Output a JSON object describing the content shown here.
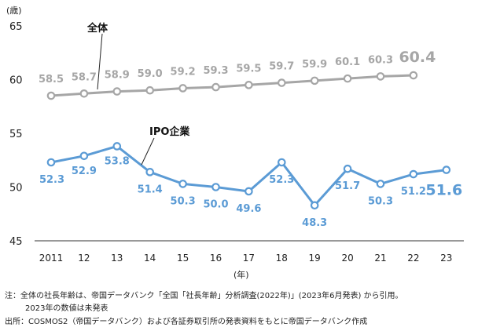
{
  "chart_data": {
    "type": "line",
    "y_unit": "(歳)",
    "x_unit": "(年)",
    "categories": [
      "2011",
      "12",
      "13",
      "14",
      "15",
      "16",
      "17",
      "18",
      "19",
      "20",
      "21",
      "22",
      "23"
    ],
    "ylim": [
      45,
      65
    ],
    "yticks": [
      45,
      50,
      55,
      60,
      65
    ],
    "grid": false,
    "series": [
      {
        "name": "全体",
        "color": "#a6a6a6",
        "values": [
          58.5,
          58.7,
          58.9,
          59.0,
          59.2,
          59.3,
          59.5,
          59.7,
          59.9,
          60.1,
          60.3,
          60.4,
          null
        ],
        "labels": [
          "58.5",
          "58.7",
          "58.9",
          "59.0",
          "59.2",
          "59.3",
          "59.5",
          "59.7",
          "59.9",
          "60.1",
          "60.3",
          "60.4",
          ""
        ]
      },
      {
        "name": "IPO企業",
        "color": "#5b9bd5",
        "values": [
          52.3,
          52.9,
          53.8,
          51.4,
          50.3,
          50.0,
          49.6,
          52.3,
          48.3,
          51.7,
          50.3,
          51.2,
          51.6
        ],
        "labels": [
          "52.3",
          "52.9",
          "53.8",
          "51.4",
          "50.3",
          "50.0",
          "49.6",
          "52.3",
          "48.3",
          "51.7",
          "50.3",
          "51.2",
          "51.6"
        ]
      }
    ]
  },
  "notes": {
    "line1": "注：全体の社長年齢は、帝国データバンク「全国「社長年齢」分析調査(2022年)」(2023年6月発表) から引用。",
    "line2": "2023年の数値は未発表",
    "line3": "出所：COSMOS2（帝国データバンク）および各証券取引所の発表資料をもとに帝国データバンク作成"
  }
}
